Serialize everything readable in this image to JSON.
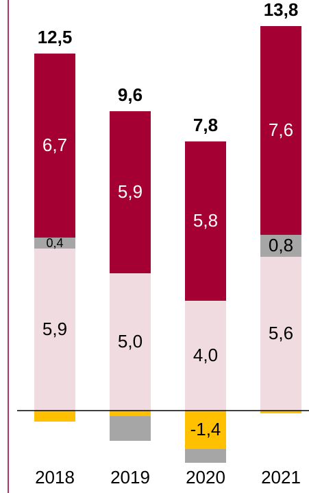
{
  "chart_data": {
    "type": "stacked_bar",
    "categories": [
      "2018",
      "2019",
      "2020",
      "2021"
    ],
    "totals": [
      12.5,
      9.6,
      7.8,
      13.8
    ],
    "total_labels": [
      "12,5",
      "9,6",
      "7,8",
      "13,8"
    ],
    "series": [
      {
        "color": "#f0dbe0",
        "label_color": "#000000",
        "values": [
          5.9,
          5.0,
          4.0,
          5.6
        ],
        "value_labels": [
          "5,9",
          "5,0",
          "4,0",
          "5,6"
        ]
      },
      {
        "color": "#a6a6a6",
        "label_color": "#000000",
        "values": [
          0.4,
          -0.9,
          -0.5,
          0.8
        ],
        "value_labels": [
          "0,4",
          null,
          null,
          "0,8"
        ]
      },
      {
        "color": "#a50034",
        "label_color": "#ffffff",
        "values": [
          6.7,
          5.9,
          5.8,
          7.6
        ],
        "value_labels": [
          "6,7",
          "5,9",
          "5,8",
          "7,6"
        ]
      },
      {
        "color": "#ffc000",
        "label_color": "#000000",
        "values": [
          -0.4,
          -0.2,
          -1.4,
          -0.1
        ],
        "value_labels": [
          null,
          null,
          "-1,4",
          null
        ]
      }
    ],
    "ylim": [
      -2,
      14.9
    ]
  }
}
